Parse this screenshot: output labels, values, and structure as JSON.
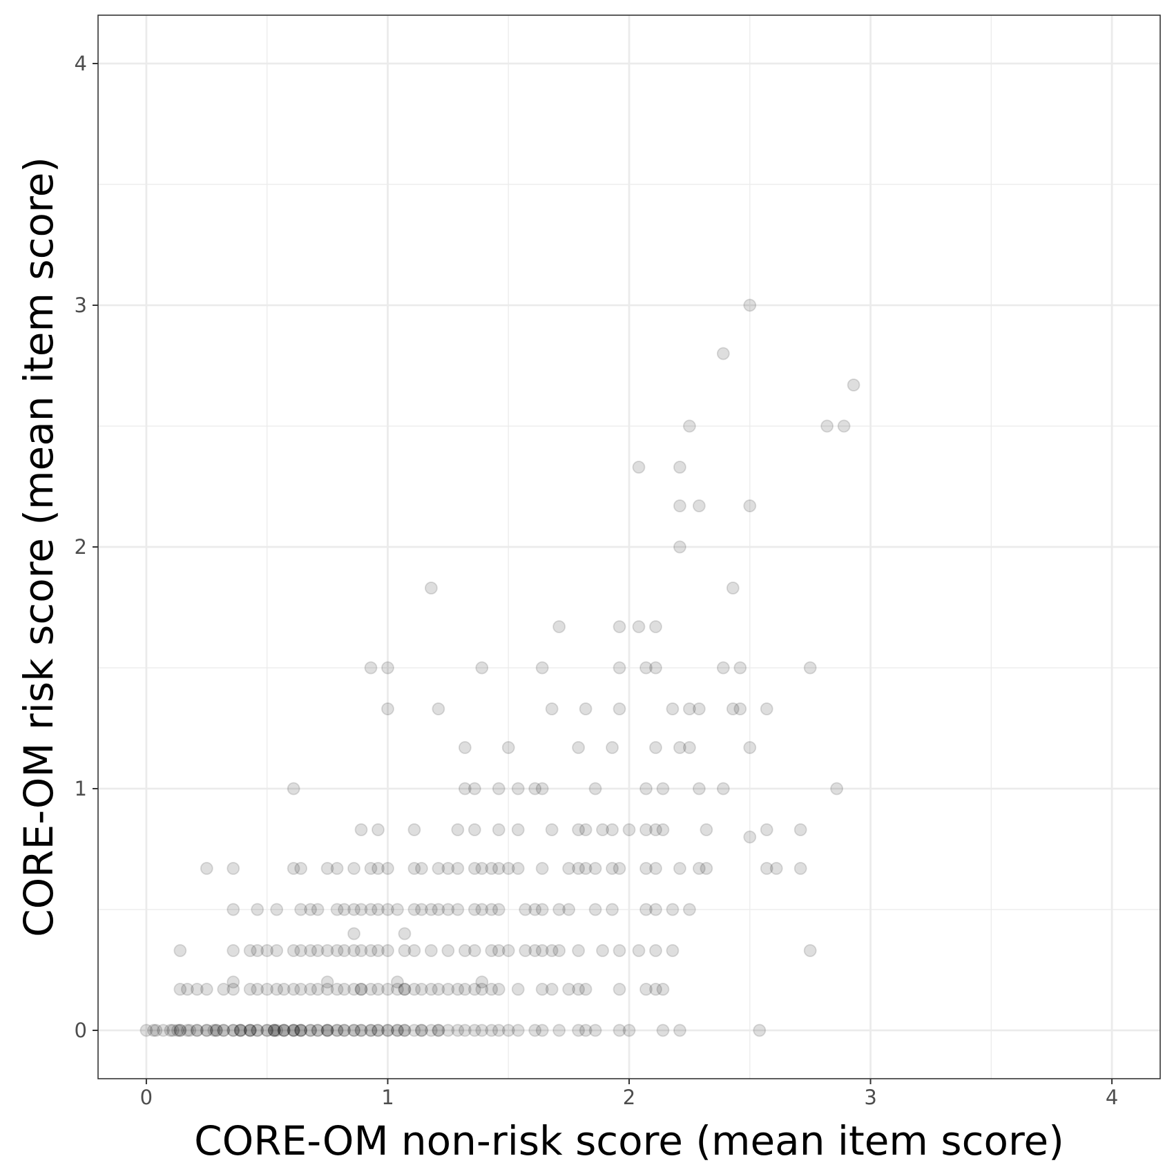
{
  "chart_data": {
    "type": "scatter",
    "title": "",
    "xlabel": "CORE-OM non-risk score (mean item score)",
    "ylabel": "CORE-OM risk score (mean item score)",
    "xlim": [
      -0.2,
      4.2
    ],
    "ylim": [
      -0.2,
      4.2
    ],
    "x_ticks": [
      "0",
      "1",
      "2",
      "3",
      "4"
    ],
    "y_ticks": [
      "0",
      "1",
      "2",
      "3",
      "4"
    ],
    "grid": true,
    "point_color": "#000000",
    "point_alpha": 0.13,
    "points": [
      [
        0.0,
        0
      ],
      [
        0.03,
        0
      ],
      [
        0.04,
        0
      ],
      [
        0.07,
        0
      ],
      [
        0.1,
        0
      ],
      [
        0.11,
        0
      ],
      [
        0.13,
        0
      ],
      [
        0.14,
        0
      ],
      [
        0.14,
        0
      ],
      [
        0.17,
        0
      ],
      [
        0.18,
        0
      ],
      [
        0.21,
        0
      ],
      [
        0.21,
        0
      ],
      [
        0.25,
        0
      ],
      [
        0.25,
        0
      ],
      [
        0.28,
        0
      ],
      [
        0.29,
        0
      ],
      [
        0.29,
        0
      ],
      [
        0.32,
        0
      ],
      [
        0.32,
        0
      ],
      [
        0.36,
        0
      ],
      [
        0.36,
        0
      ],
      [
        0.39,
        0
      ],
      [
        0.39,
        0
      ],
      [
        0.39,
        0
      ],
      [
        0.43,
        0
      ],
      [
        0.43,
        0
      ],
      [
        0.43,
        0
      ],
      [
        0.46,
        0
      ],
      [
        0.46,
        0
      ],
      [
        0.5,
        0
      ],
      [
        0.5,
        0
      ],
      [
        0.53,
        0
      ],
      [
        0.53,
        0
      ],
      [
        0.53,
        0
      ],
      [
        0.54,
        0
      ],
      [
        0.57,
        0
      ],
      [
        0.57,
        0
      ],
      [
        0.57,
        0
      ],
      [
        0.61,
        0
      ],
      [
        0.61,
        0
      ],
      [
        0.61,
        0
      ],
      [
        0.64,
        0
      ],
      [
        0.64,
        0
      ],
      [
        0.64,
        0
      ],
      [
        0.68,
        0
      ],
      [
        0.68,
        0
      ],
      [
        0.71,
        0
      ],
      [
        0.71,
        0
      ],
      [
        0.75,
        0
      ],
      [
        0.75,
        0
      ],
      [
        0.75,
        0
      ],
      [
        0.79,
        0
      ],
      [
        0.79,
        0
      ],
      [
        0.82,
        0
      ],
      [
        0.82,
        0
      ],
      [
        0.86,
        0
      ],
      [
        0.86,
        0
      ],
      [
        0.89,
        0
      ],
      [
        0.89,
        0
      ],
      [
        0.93,
        0
      ],
      [
        0.93,
        0
      ],
      [
        0.96,
        0
      ],
      [
        0.96,
        0
      ],
      [
        1.0,
        0
      ],
      [
        1.0,
        0
      ],
      [
        1.04,
        0
      ],
      [
        1.04,
        0
      ],
      [
        1.07,
        0
      ],
      [
        1.07,
        0
      ],
      [
        1.11,
        0
      ],
      [
        1.14,
        0
      ],
      [
        1.14,
        0
      ],
      [
        1.18,
        0
      ],
      [
        1.21,
        0
      ],
      [
        1.21,
        0
      ],
      [
        1.25,
        0
      ],
      [
        1.29,
        0
      ],
      [
        1.32,
        0
      ],
      [
        1.36,
        0
      ],
      [
        1.39,
        0
      ],
      [
        1.43,
        0
      ],
      [
        1.46,
        0
      ],
      [
        1.5,
        0
      ],
      [
        1.54,
        0
      ],
      [
        1.61,
        0
      ],
      [
        1.64,
        0
      ],
      [
        1.71,
        0
      ],
      [
        1.79,
        0
      ],
      [
        1.82,
        0
      ],
      [
        1.86,
        0
      ],
      [
        1.96,
        0
      ],
      [
        2.0,
        0
      ],
      [
        2.14,
        0
      ],
      [
        2.21,
        0
      ],
      [
        2.54,
        0
      ],
      [
        0.14,
        0.17
      ],
      [
        0.17,
        0.17
      ],
      [
        0.21,
        0.17
      ],
      [
        0.25,
        0.17
      ],
      [
        0.32,
        0.17
      ],
      [
        0.36,
        0.17
      ],
      [
        0.43,
        0.17
      ],
      [
        0.46,
        0.17
      ],
      [
        0.5,
        0.17
      ],
      [
        0.54,
        0.17
      ],
      [
        0.57,
        0.17
      ],
      [
        0.61,
        0.17
      ],
      [
        0.64,
        0.17
      ],
      [
        0.68,
        0.17
      ],
      [
        0.71,
        0.17
      ],
      [
        0.75,
        0.17
      ],
      [
        0.79,
        0.17
      ],
      [
        0.82,
        0.17
      ],
      [
        0.86,
        0.17
      ],
      [
        0.89,
        0.17
      ],
      [
        0.89,
        0.17
      ],
      [
        0.93,
        0.17
      ],
      [
        0.96,
        0.17
      ],
      [
        1.0,
        0.17
      ],
      [
        1.04,
        0.17
      ],
      [
        1.07,
        0.17
      ],
      [
        1.07,
        0.17
      ],
      [
        1.11,
        0.17
      ],
      [
        1.14,
        0.17
      ],
      [
        1.18,
        0.17
      ],
      [
        1.21,
        0.17
      ],
      [
        1.25,
        0.17
      ],
      [
        1.29,
        0.17
      ],
      [
        1.32,
        0.17
      ],
      [
        1.36,
        0.17
      ],
      [
        1.39,
        0.17
      ],
      [
        1.43,
        0.17
      ],
      [
        1.46,
        0.17
      ],
      [
        1.54,
        0.17
      ],
      [
        1.64,
        0.17
      ],
      [
        1.68,
        0.17
      ],
      [
        1.75,
        0.17
      ],
      [
        1.79,
        0.17
      ],
      [
        1.82,
        0.17
      ],
      [
        1.96,
        0.17
      ],
      [
        2.07,
        0.17
      ],
      [
        2.11,
        0.17
      ],
      [
        2.14,
        0.17
      ],
      [
        0.36,
        0.2
      ],
      [
        0.75,
        0.2
      ],
      [
        1.04,
        0.2
      ],
      [
        1.39,
        0.2
      ],
      [
        0.14,
        0.33
      ],
      [
        0.36,
        0.33
      ],
      [
        0.43,
        0.33
      ],
      [
        0.46,
        0.33
      ],
      [
        0.5,
        0.33
      ],
      [
        0.54,
        0.33
      ],
      [
        0.61,
        0.33
      ],
      [
        0.64,
        0.33
      ],
      [
        0.68,
        0.33
      ],
      [
        0.71,
        0.33
      ],
      [
        0.75,
        0.33
      ],
      [
        0.79,
        0.33
      ],
      [
        0.82,
        0.33
      ],
      [
        0.86,
        0.33
      ],
      [
        0.89,
        0.33
      ],
      [
        0.93,
        0.33
      ],
      [
        0.96,
        0.33
      ],
      [
        1.0,
        0.33
      ],
      [
        1.07,
        0.33
      ],
      [
        1.11,
        0.33
      ],
      [
        1.18,
        0.33
      ],
      [
        1.25,
        0.33
      ],
      [
        1.32,
        0.33
      ],
      [
        1.36,
        0.33
      ],
      [
        1.43,
        0.33
      ],
      [
        1.46,
        0.33
      ],
      [
        1.5,
        0.33
      ],
      [
        1.57,
        0.33
      ],
      [
        1.61,
        0.33
      ],
      [
        1.64,
        0.33
      ],
      [
        1.68,
        0.33
      ],
      [
        1.71,
        0.33
      ],
      [
        1.79,
        0.33
      ],
      [
        1.89,
        0.33
      ],
      [
        1.96,
        0.33
      ],
      [
        2.04,
        0.33
      ],
      [
        2.11,
        0.33
      ],
      [
        2.18,
        0.33
      ],
      [
        2.75,
        0.33
      ],
      [
        0.86,
        0.4
      ],
      [
        1.07,
        0.4
      ],
      [
        0.36,
        0.5
      ],
      [
        0.46,
        0.5
      ],
      [
        0.54,
        0.5
      ],
      [
        0.64,
        0.5
      ],
      [
        0.68,
        0.5
      ],
      [
        0.71,
        0.5
      ],
      [
        0.79,
        0.5
      ],
      [
        0.82,
        0.5
      ],
      [
        0.86,
        0.5
      ],
      [
        0.89,
        0.5
      ],
      [
        0.93,
        0.5
      ],
      [
        0.96,
        0.5
      ],
      [
        1.0,
        0.5
      ],
      [
        1.04,
        0.5
      ],
      [
        1.11,
        0.5
      ],
      [
        1.14,
        0.5
      ],
      [
        1.18,
        0.5
      ],
      [
        1.21,
        0.5
      ],
      [
        1.25,
        0.5
      ],
      [
        1.29,
        0.5
      ],
      [
        1.36,
        0.5
      ],
      [
        1.39,
        0.5
      ],
      [
        1.43,
        0.5
      ],
      [
        1.46,
        0.5
      ],
      [
        1.57,
        0.5
      ],
      [
        1.61,
        0.5
      ],
      [
        1.64,
        0.5
      ],
      [
        1.71,
        0.5
      ],
      [
        1.75,
        0.5
      ],
      [
        1.86,
        0.5
      ],
      [
        1.93,
        0.5
      ],
      [
        2.07,
        0.5
      ],
      [
        2.11,
        0.5
      ],
      [
        2.18,
        0.5
      ],
      [
        2.25,
        0.5
      ],
      [
        0.25,
        0.67
      ],
      [
        0.36,
        0.67
      ],
      [
        0.61,
        0.67
      ],
      [
        0.64,
        0.67
      ],
      [
        0.75,
        0.67
      ],
      [
        0.79,
        0.67
      ],
      [
        0.86,
        0.67
      ],
      [
        0.93,
        0.67
      ],
      [
        0.96,
        0.67
      ],
      [
        1.0,
        0.67
      ],
      [
        1.11,
        0.67
      ],
      [
        1.14,
        0.67
      ],
      [
        1.21,
        0.67
      ],
      [
        1.25,
        0.67
      ],
      [
        1.29,
        0.67
      ],
      [
        1.36,
        0.67
      ],
      [
        1.39,
        0.67
      ],
      [
        1.43,
        0.67
      ],
      [
        1.46,
        0.67
      ],
      [
        1.5,
        0.67
      ],
      [
        1.54,
        0.67
      ],
      [
        1.64,
        0.67
      ],
      [
        1.75,
        0.67
      ],
      [
        1.79,
        0.67
      ],
      [
        1.82,
        0.67
      ],
      [
        1.86,
        0.67
      ],
      [
        1.93,
        0.67
      ],
      [
        1.96,
        0.67
      ],
      [
        2.07,
        0.67
      ],
      [
        2.11,
        0.67
      ],
      [
        2.21,
        0.67
      ],
      [
        2.29,
        0.67
      ],
      [
        2.32,
        0.67
      ],
      [
        2.57,
        0.67
      ],
      [
        2.61,
        0.67
      ],
      [
        2.71,
        0.67
      ],
      [
        0.89,
        0.83
      ],
      [
        0.96,
        0.83
      ],
      [
        1.11,
        0.83
      ],
      [
        1.29,
        0.83
      ],
      [
        1.36,
        0.83
      ],
      [
        1.46,
        0.83
      ],
      [
        1.54,
        0.83
      ],
      [
        1.68,
        0.83
      ],
      [
        1.79,
        0.83
      ],
      [
        1.82,
        0.83
      ],
      [
        1.89,
        0.83
      ],
      [
        1.93,
        0.83
      ],
      [
        2.0,
        0.83
      ],
      [
        2.07,
        0.83
      ],
      [
        2.11,
        0.83
      ],
      [
        2.14,
        0.83
      ],
      [
        2.32,
        0.83
      ],
      [
        2.57,
        0.83
      ],
      [
        2.71,
        0.83
      ],
      [
        2.5,
        0.8
      ],
      [
        0.61,
        1.0
      ],
      [
        1.32,
        1.0
      ],
      [
        1.36,
        1.0
      ],
      [
        1.46,
        1.0
      ],
      [
        1.54,
        1.0
      ],
      [
        1.61,
        1.0
      ],
      [
        1.64,
        1.0
      ],
      [
        1.86,
        1.0
      ],
      [
        2.07,
        1.0
      ],
      [
        2.14,
        1.0
      ],
      [
        2.29,
        1.0
      ],
      [
        2.39,
        1.0
      ],
      [
        2.86,
        1.0
      ],
      [
        1.32,
        1.17
      ],
      [
        1.5,
        1.17
      ],
      [
        1.79,
        1.17
      ],
      [
        1.93,
        1.17
      ],
      [
        2.11,
        1.17
      ],
      [
        2.21,
        1.17
      ],
      [
        2.25,
        1.17
      ],
      [
        2.5,
        1.17
      ],
      [
        1.0,
        1.33
      ],
      [
        1.21,
        1.33
      ],
      [
        1.68,
        1.33
      ],
      [
        1.82,
        1.33
      ],
      [
        1.96,
        1.33
      ],
      [
        2.18,
        1.33
      ],
      [
        2.25,
        1.33
      ],
      [
        2.29,
        1.33
      ],
      [
        2.43,
        1.33
      ],
      [
        2.46,
        1.33
      ],
      [
        2.57,
        1.33
      ],
      [
        0.93,
        1.5
      ],
      [
        1.0,
        1.5
      ],
      [
        1.39,
        1.5
      ],
      [
        1.64,
        1.5
      ],
      [
        1.96,
        1.5
      ],
      [
        2.07,
        1.5
      ],
      [
        2.11,
        1.5
      ],
      [
        2.39,
        1.5
      ],
      [
        2.46,
        1.5
      ],
      [
        2.75,
        1.5
      ],
      [
        1.71,
        1.67
      ],
      [
        1.96,
        1.67
      ],
      [
        2.04,
        1.67
      ],
      [
        2.11,
        1.67
      ],
      [
        1.18,
        1.83
      ],
      [
        2.43,
        1.83
      ],
      [
        2.21,
        2.0
      ],
      [
        2.21,
        2.17
      ],
      [
        2.29,
        2.17
      ],
      [
        2.5,
        2.17
      ],
      [
        2.04,
        2.33
      ],
      [
        2.21,
        2.33
      ],
      [
        2.25,
        2.5
      ],
      [
        2.82,
        2.5
      ],
      [
        2.89,
        2.5
      ],
      [
        2.93,
        2.67
      ],
      [
        2.39,
        2.8
      ],
      [
        2.5,
        3.0
      ]
    ]
  }
}
